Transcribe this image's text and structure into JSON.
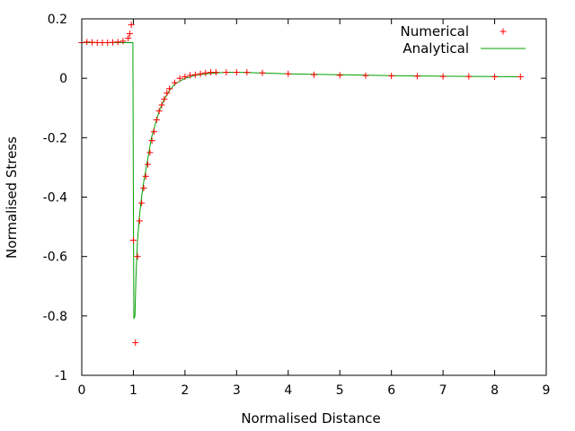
{
  "chart_data": {
    "type": "line",
    "title": "",
    "xlabel": "Normalised Distance",
    "ylabel": "Normalised Stress",
    "xlim": [
      0,
      9
    ],
    "ylim": [
      -1,
      0.2
    ],
    "xticks": [
      0,
      1,
      2,
      3,
      4,
      5,
      6,
      7,
      8,
      9
    ],
    "yticks": [
      -1,
      -0.8,
      -0.6,
      -0.4,
      -0.2,
      0,
      0.2
    ],
    "xtick_labels": [
      "0",
      "1",
      "2",
      "3",
      "4",
      "5",
      "6",
      "7",
      "8",
      "9"
    ],
    "ytick_labels": [
      "-1",
      "-0.8",
      "-0.6",
      "-0.4",
      "-0.2",
      "0",
      "0.2"
    ],
    "grid": false,
    "legend_position": "top-right",
    "series": [
      {
        "name": "Numerical",
        "style": "points",
        "marker": "plus",
        "color": "#ff0000",
        "x": [
          0.0,
          0.1,
          0.2,
          0.3,
          0.4,
          0.5,
          0.6,
          0.7,
          0.8,
          0.9,
          0.93,
          0.96,
          1.0,
          1.04,
          1.08,
          1.12,
          1.16,
          1.2,
          1.24,
          1.28,
          1.32,
          1.36,
          1.4,
          1.45,
          1.5,
          1.55,
          1.6,
          1.65,
          1.7,
          1.8,
          1.9,
          2.0,
          2.1,
          2.2,
          2.3,
          2.4,
          2.5,
          2.6,
          2.8,
          3.0,
          3.2,
          3.5,
          4.0,
          4.5,
          5.0,
          5.5,
          6.0,
          6.5,
          7.0,
          7.5,
          8.0,
          8.5
        ],
        "y": [
          0.12,
          0.122,
          0.121,
          0.12,
          0.12,
          0.12,
          0.121,
          0.122,
          0.125,
          0.135,
          0.15,
          0.18,
          -0.545,
          -0.89,
          -0.6,
          -0.48,
          -0.42,
          -0.37,
          -0.33,
          -0.29,
          -0.25,
          -0.21,
          -0.18,
          -0.14,
          -0.11,
          -0.09,
          -0.07,
          -0.05,
          -0.035,
          -0.015,
          0.0,
          0.005,
          0.01,
          0.012,
          0.015,
          0.018,
          0.02,
          0.02,
          0.02,
          0.02,
          0.02,
          0.018,
          0.015,
          0.012,
          0.01,
          0.009,
          0.008,
          0.007,
          0.006,
          0.006,
          0.005,
          0.005
        ]
      },
      {
        "name": "Analytical",
        "style": "line",
        "color": "#00a000",
        "x": [
          0.0,
          0.2,
          0.4,
          0.6,
          0.8,
          0.97,
          0.99,
          1.0,
          1.01,
          1.03,
          1.05,
          1.08,
          1.12,
          1.16,
          1.2,
          1.25,
          1.3,
          1.35,
          1.4,
          1.5,
          1.6,
          1.7,
          1.8,
          1.9,
          2.0,
          2.2,
          2.4,
          2.6,
          2.8,
          3.0,
          3.5,
          4.0,
          5.0,
          6.0,
          7.0,
          8.0,
          8.5
        ],
        "y": [
          0.12,
          0.12,
          0.12,
          0.12,
          0.12,
          0.12,
          0.12,
          -0.37,
          -0.81,
          -0.8,
          -0.67,
          -0.55,
          -0.46,
          -0.4,
          -0.35,
          -0.3,
          -0.25,
          -0.2,
          -0.17,
          -0.11,
          -0.07,
          -0.04,
          -0.02,
          -0.01,
          0.0,
          0.01,
          0.015,
          0.018,
          0.02,
          0.02,
          0.018,
          0.015,
          0.012,
          0.009,
          0.007,
          0.006,
          0.005
        ]
      }
    ]
  }
}
